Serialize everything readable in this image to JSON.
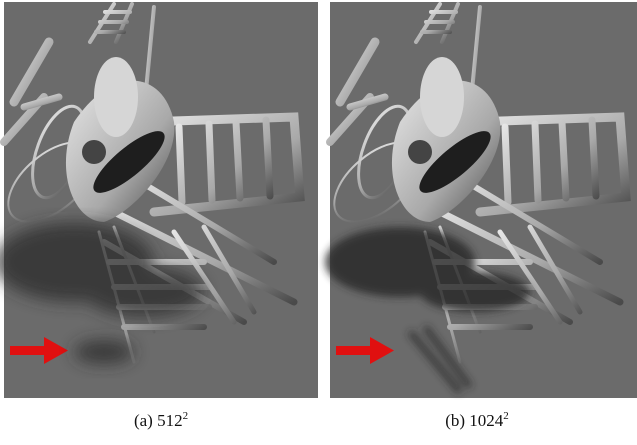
{
  "figure": {
    "panels": [
      {
        "label": "(a)",
        "base": "512",
        "exponent": "2"
      },
      {
        "label": "(b)",
        "base": "1024",
        "exponent": "2"
      }
    ]
  }
}
